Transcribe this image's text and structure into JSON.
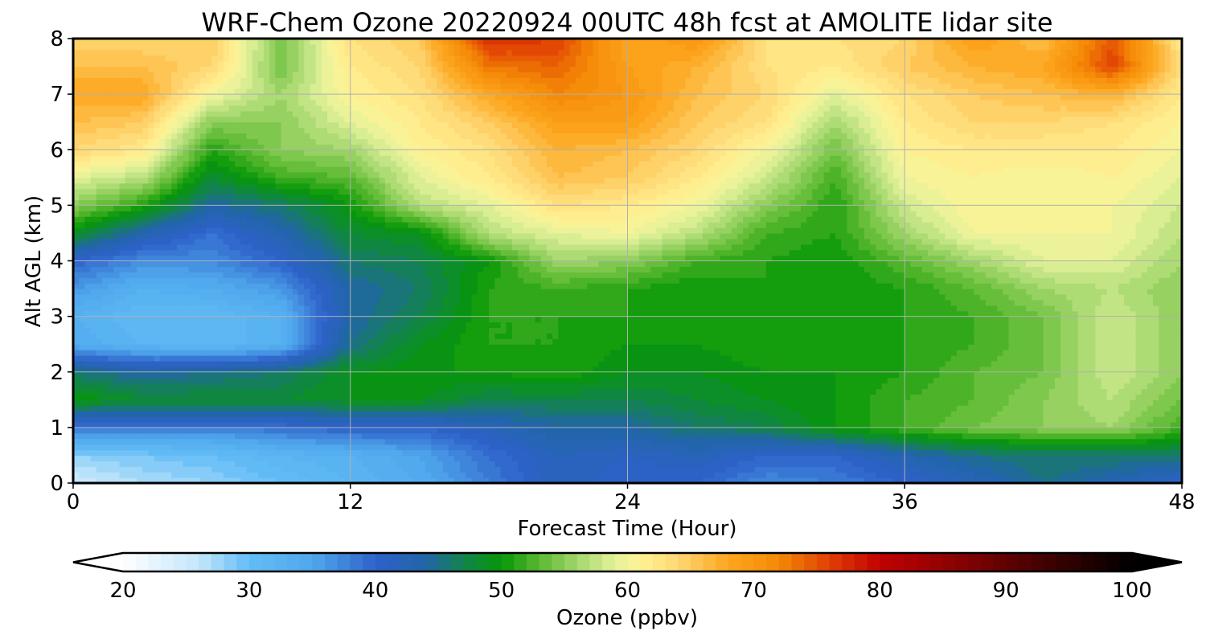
{
  "chart_data": {
    "type": "heatmap",
    "title": "WRF-Chem Ozone  20220924 00UTC 48h fcst at AMOLITE lidar site",
    "xlabel": "Forecast Time (Hour)",
    "ylabel": "Alt AGL (km)",
    "xlim": [
      0,
      48
    ],
    "ylim": [
      0,
      8
    ],
    "x_ticks": [
      0,
      12,
      24,
      36,
      48
    ],
    "y_ticks": [
      0,
      1,
      2,
      3,
      4,
      5,
      6,
      7,
      8
    ],
    "grid": true,
    "x": [
      0,
      3,
      6,
      9,
      12,
      15,
      18,
      21,
      24,
      27,
      30,
      33,
      36,
      39,
      42,
      45,
      48
    ],
    "y": [
      0,
      0.5,
      1,
      1.5,
      2,
      2.5,
      3,
      3.5,
      4,
      4.5,
      5,
      5.5,
      6,
      6.5,
      7,
      7.5,
      8
    ],
    "z": [
      [
        25,
        27,
        28,
        30,
        32,
        34,
        38,
        42,
        40,
        40,
        37,
        38,
        40,
        42,
        45,
        43,
        40
      ],
      [
        28,
        29,
        30,
        32,
        33,
        35,
        39,
        42,
        41,
        42,
        40,
        40,
        43,
        45,
        46,
        46,
        46
      ],
      [
        38,
        38,
        38,
        39,
        40,
        40,
        42,
        44,
        44,
        46,
        47,
        50,
        52,
        54,
        55,
        56,
        52
      ],
      [
        50,
        48,
        48,
        48,
        49,
        49,
        47,
        47,
        47,
        48,
        49,
        50,
        52,
        53,
        55,
        57,
        54
      ],
      [
        46,
        44,
        45,
        46,
        49,
        50,
        50,
        51,
        49,
        49,
        50,
        50,
        51,
        53,
        54,
        58,
        55
      ],
      [
        34,
        32,
        31,
        33,
        45,
        49,
        51,
        51,
        50,
        50,
        51,
        51,
        51,
        52,
        54,
        58,
        55
      ],
      [
        33,
        31,
        31,
        33,
        44,
        47,
        51,
        51,
        51,
        50,
        51,
        50,
        51,
        52,
        54,
        58,
        55
      ],
      [
        36,
        33,
        34,
        36,
        44,
        46,
        51,
        52,
        51,
        50,
        51,
        50,
        51,
        53,
        56,
        57,
        55
      ],
      [
        40,
        37,
        37,
        40,
        46,
        47,
        50,
        56,
        55,
        52,
        51,
        50,
        53,
        56,
        59,
        59,
        56
      ],
      [
        49,
        43,
        39,
        43,
        48,
        49,
        57,
        59,
        60,
        57,
        52,
        51,
        56,
        60,
        60,
        60,
        57
      ],
      [
        55,
        51,
        44,
        46,
        50,
        57,
        59,
        63,
        62,
        60,
        55,
        51,
        58,
        61,
        61,
        60,
        58
      ],
      [
        59,
        57,
        48,
        52,
        53,
        59,
        62,
        66,
        65,
        62,
        58,
        52,
        60,
        61,
        60,
        61,
        59
      ],
      [
        64,
        62,
        51,
        55,
        56,
        61,
        63,
        67,
        66,
        64,
        60,
        54,
        61,
        62,
        62,
        62,
        60
      ],
      [
        66,
        65,
        55,
        55,
        59,
        62,
        65,
        69,
        69,
        65,
        63,
        56,
        62,
        64,
        64,
        63,
        61
      ],
      [
        68,
        68,
        60,
        56,
        61,
        63,
        68,
        72,
        70,
        66,
        64,
        59,
        63,
        65,
        66,
        67,
        62
      ],
      [
        66,
        66,
        64,
        54,
        62,
        64,
        73,
        74,
        69,
        67,
        63,
        62,
        65,
        67,
        68,
        76,
        63
      ],
      [
        64,
        64,
        65,
        54,
        63,
        65,
        77,
        76,
        68,
        70,
        63,
        63,
        64,
        69,
        66,
        75,
        62
      ]
    ],
    "colorbar": {
      "label": "Ozone  (ppbv)",
      "vmin": 20,
      "vmax": 100,
      "step": 1,
      "extend": "both",
      "ticks": [
        "20",
        "30",
        "40",
        "50",
        "60",
        "70",
        "80",
        "90",
        "100"
      ],
      "stops": [
        {
          "v": 20,
          "c": "#ffffff"
        },
        {
          "v": 26,
          "c": "#c4e6fb"
        },
        {
          "v": 30,
          "c": "#62bdf6"
        },
        {
          "v": 35,
          "c": "#4fa8ec"
        },
        {
          "v": 40,
          "c": "#2e62c9"
        },
        {
          "v": 44,
          "c": "#2165a8"
        },
        {
          "v": 47,
          "c": "#12844c"
        },
        {
          "v": 50,
          "c": "#069706"
        },
        {
          "v": 53,
          "c": "#5bb930"
        },
        {
          "v": 56,
          "c": "#a2d66c"
        },
        {
          "v": 59,
          "c": "#e4f29b"
        },
        {
          "v": 61,
          "c": "#fff394"
        },
        {
          "v": 64,
          "c": "#fed774"
        },
        {
          "v": 68,
          "c": "#fda61e"
        },
        {
          "v": 72,
          "c": "#f58906"
        },
        {
          "v": 76,
          "c": "#e03f04"
        },
        {
          "v": 80,
          "c": "#c20000"
        },
        {
          "v": 86,
          "c": "#8a0202"
        },
        {
          "v": 92,
          "c": "#4c0101"
        },
        {
          "v": 100,
          "c": "#000000"
        }
      ]
    }
  }
}
